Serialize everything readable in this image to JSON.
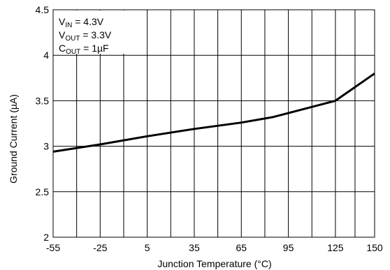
{
  "chart_data": {
    "type": "line",
    "title": "",
    "xlabel": "Junction Temperature (°C)",
    "ylabel": "Ground Current (µA)",
    "xlim": [
      -55,
      150
    ],
    "ylim": [
      2,
      4.5
    ],
    "grid": true,
    "x_ticks": [
      -55,
      -25,
      5,
      35,
      65,
      95,
      125,
      150
    ],
    "y_ticks": [
      2,
      2.5,
      3,
      3.5,
      4,
      4.5
    ],
    "x_tick_labels": [
      "-55",
      "-25",
      "5",
      "35",
      "65",
      "95",
      "125",
      "150"
    ],
    "y_tick_labels": [
      "2",
      "2.5",
      "3",
      "3.5",
      "4",
      "4.5"
    ],
    "x_minor_gridlines": [
      -40,
      -10,
      20,
      50,
      80,
      110,
      137.5
    ],
    "annotations": [
      {
        "main": "V",
        "sub": "IN",
        "rest": " = 4.3V"
      },
      {
        "main": "V",
        "sub": "OUT",
        "rest": " = 3.3V"
      },
      {
        "main": "C",
        "sub": "OUT",
        "rest": " = 1µF"
      }
    ],
    "series": [
      {
        "color": "#000000",
        "points": [
          [
            -55,
            2.94
          ],
          [
            -25,
            3.02
          ],
          [
            5,
            3.11
          ],
          [
            35,
            3.19
          ],
          [
            65,
            3.26
          ],
          [
            85,
            3.32
          ],
          [
            125,
            3.5
          ],
          [
            150,
            3.8
          ]
        ]
      }
    ]
  }
}
